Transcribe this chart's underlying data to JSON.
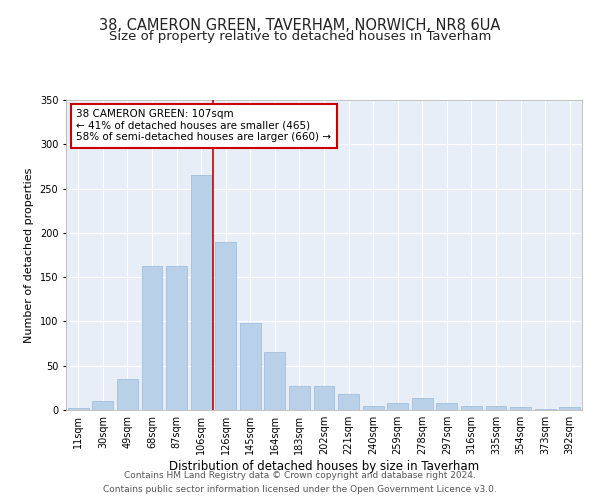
{
  "title1": "38, CAMERON GREEN, TAVERHAM, NORWICH, NR8 6UA",
  "title2": "Size of property relative to detached houses in Taverham",
  "xlabel": "Distribution of detached houses by size in Taverham",
  "ylabel": "Number of detached properties",
  "bar_labels": [
    "11sqm",
    "30sqm",
    "49sqm",
    "68sqm",
    "87sqm",
    "106sqm",
    "126sqm",
    "145sqm",
    "164sqm",
    "183sqm",
    "202sqm",
    "221sqm",
    "240sqm",
    "259sqm",
    "278sqm",
    "297sqm",
    "316sqm",
    "335sqm",
    "354sqm",
    "373sqm",
    "392sqm"
  ],
  "bar_values": [
    2,
    10,
    35,
    163,
    163,
    265,
    190,
    98,
    65,
    27,
    27,
    18,
    5,
    8,
    13,
    8,
    5,
    4,
    3,
    1,
    3
  ],
  "bar_color": "#b8d0e8",
  "bar_edge_color": "#9ab8d8",
  "background_color": "#e8eef8",
  "grid_color": "#ffffff",
  "annotation_line1": "38 CAMERON GREEN: 107sqm",
  "annotation_line2": "← 41% of detached houses are smaller (465)",
  "annotation_line3": "58% of semi-detached houses are larger (660) →",
  "annotation_box_color": "#ffffff",
  "annotation_box_edge_color": "#cc0000",
  "vline_color": "#cc0000",
  "vline_pos": 5.5,
  "ylim": [
    0,
    350
  ],
  "yticks": [
    0,
    50,
    100,
    150,
    200,
    250,
    300,
    350
  ],
  "footer1": "Contains HM Land Registry data © Crown copyright and database right 2024.",
  "footer2": "Contains public sector information licensed under the Open Government Licence v3.0.",
  "title1_fontsize": 10.5,
  "title2_fontsize": 9.5,
  "xlabel_fontsize": 8.5,
  "ylabel_fontsize": 8,
  "tick_fontsize": 7,
  "annotation_fontsize": 7.5,
  "footer_fontsize": 6.5
}
